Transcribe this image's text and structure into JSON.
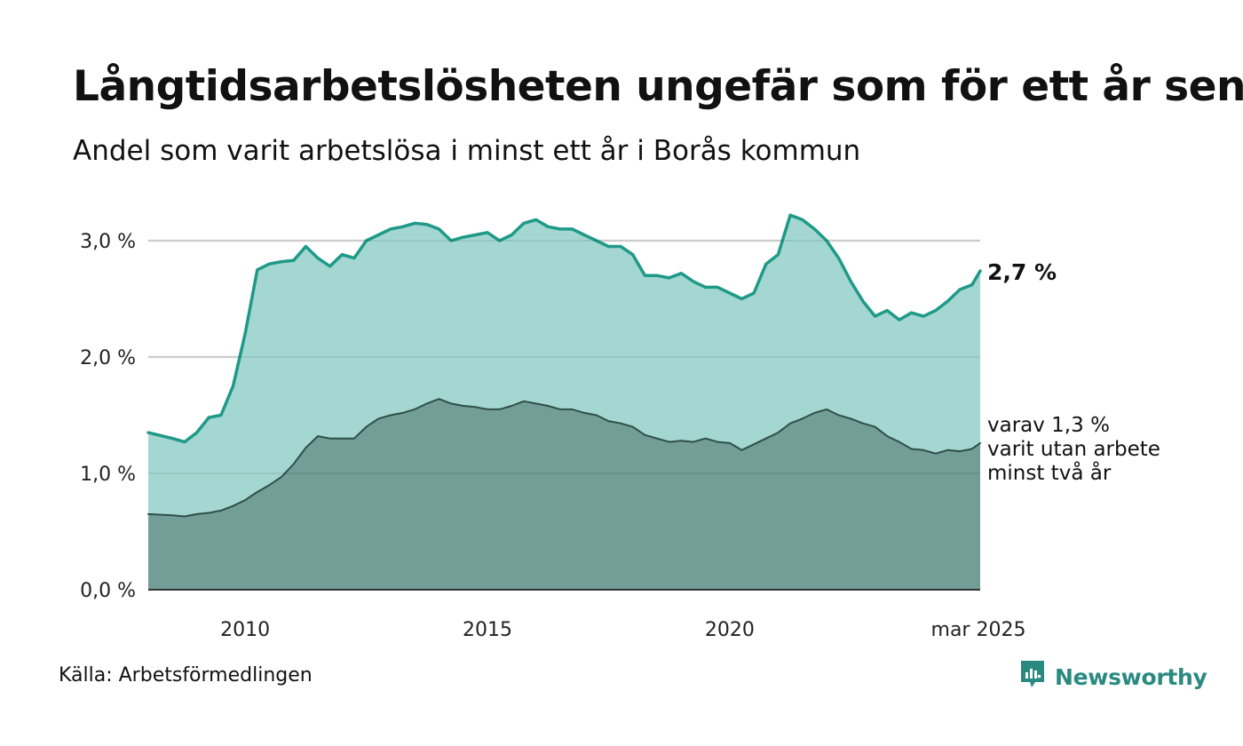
{
  "title": "Långtidsarbetslösheten ungefär som för ett år sen",
  "subtitle": "Andel som varit arbetslösa i minst ett år i Borås kommun",
  "source": "Källa: Arbetsförmedlingen",
  "brand": {
    "name": "Newsworthy",
    "icon": "newsworthy-logo-icon",
    "color": "#2a8a80"
  },
  "colors": {
    "series1_line": "#1f9a88",
    "series1_fill": "#a4d7d1",
    "series2_line": "#2f4f48",
    "series2_fill": "#729e97",
    "grid": "#dddddd",
    "axis": "#333333"
  },
  "chart_data": {
    "type": "area",
    "title": "Långtidsarbetslösheten ungefär som för ett år sen",
    "subtitle": "Andel som varit arbetslösa i minst ett år i Borås kommun",
    "xlabel": "",
    "ylabel": "",
    "xlim": [
      2008.0,
      2025.17
    ],
    "ylim": [
      0,
      3.3
    ],
    "yticks": [
      0,
      1,
      2,
      3
    ],
    "ytick_labels": [
      "0,0 %",
      "1,0 %",
      "2,0 %",
      "3,0 %"
    ],
    "xticks": [
      2010,
      2015,
      2020,
      2025.17
    ],
    "xtick_labels": [
      "2010",
      "2015",
      "2020",
      "mar 2025"
    ],
    "grid": true,
    "end_label": "2,7 %",
    "annotation": [
      "varav 1,3 %",
      "varit utan arbete",
      "minst två år"
    ],
    "series": [
      {
        "label": "minst ett år",
        "x": [
          2008.0,
          2008.5,
          2008.75,
          2009.0,
          2009.25,
          2009.5,
          2009.75,
          2010.0,
          2010.25,
          2010.5,
          2010.75,
          2011.0,
          2011.25,
          2011.5,
          2011.75,
          2012.0,
          2012.25,
          2012.5,
          2012.75,
          2013.0,
          2013.25,
          2013.5,
          2013.75,
          2014.0,
          2014.25,
          2014.5,
          2014.75,
          2015.0,
          2015.25,
          2015.5,
          2015.75,
          2016.0,
          2016.25,
          2016.5,
          2016.75,
          2017.0,
          2017.25,
          2017.5,
          2017.75,
          2018.0,
          2018.25,
          2018.5,
          2018.75,
          2019.0,
          2019.25,
          2019.5,
          2019.75,
          2020.0,
          2020.25,
          2020.5,
          2020.75,
          2021.0,
          2021.25,
          2021.5,
          2021.75,
          2022.0,
          2022.25,
          2022.5,
          2022.75,
          2023.0,
          2023.25,
          2023.5,
          2023.75,
          2024.0,
          2024.25,
          2024.5,
          2024.75,
          2025.0,
          2025.17
        ],
        "y": [
          1.35,
          1.3,
          1.27,
          1.35,
          1.48,
          1.5,
          1.75,
          2.2,
          2.75,
          2.8,
          2.82,
          2.83,
          2.95,
          2.85,
          2.78,
          2.88,
          2.85,
          3.0,
          3.05,
          3.1,
          3.12,
          3.15,
          3.14,
          3.1,
          3.0,
          3.03,
          3.05,
          3.07,
          3.0,
          3.05,
          3.15,
          3.18,
          3.12,
          3.1,
          3.1,
          3.05,
          3.0,
          2.95,
          2.95,
          2.88,
          2.7,
          2.7,
          2.68,
          2.72,
          2.65,
          2.6,
          2.6,
          2.55,
          2.5,
          2.55,
          2.8,
          2.88,
          3.22,
          3.18,
          3.1,
          3.0,
          2.85,
          2.65,
          2.48,
          2.35,
          2.4,
          2.32,
          2.38,
          2.35,
          2.4,
          2.48,
          2.58,
          2.62,
          2.74
        ]
      },
      {
        "label": "varav minst två år",
        "x": [
          2008.0,
          2008.5,
          2008.75,
          2009.0,
          2009.25,
          2009.5,
          2009.75,
          2010.0,
          2010.25,
          2010.5,
          2010.75,
          2011.0,
          2011.25,
          2011.5,
          2011.75,
          2012.0,
          2012.25,
          2012.5,
          2012.75,
          2013.0,
          2013.25,
          2013.5,
          2013.75,
          2014.0,
          2014.25,
          2014.5,
          2014.75,
          2015.0,
          2015.25,
          2015.5,
          2015.75,
          2016.0,
          2016.25,
          2016.5,
          2016.75,
          2017.0,
          2017.25,
          2017.5,
          2017.75,
          2018.0,
          2018.25,
          2018.5,
          2018.75,
          2019.0,
          2019.25,
          2019.5,
          2019.75,
          2020.0,
          2020.25,
          2020.5,
          2020.75,
          2021.0,
          2021.25,
          2021.5,
          2021.75,
          2022.0,
          2022.25,
          2022.5,
          2022.75,
          2023.0,
          2023.25,
          2023.5,
          2023.75,
          2024.0,
          2024.25,
          2024.5,
          2024.75,
          2025.0,
          2025.17
        ],
        "y": [
          0.65,
          0.64,
          0.63,
          0.65,
          0.66,
          0.68,
          0.72,
          0.77,
          0.84,
          0.9,
          0.97,
          1.08,
          1.22,
          1.32,
          1.3,
          1.3,
          1.3,
          1.4,
          1.47,
          1.5,
          1.52,
          1.55,
          1.6,
          1.64,
          1.6,
          1.58,
          1.57,
          1.55,
          1.55,
          1.58,
          1.62,
          1.6,
          1.58,
          1.55,
          1.55,
          1.52,
          1.5,
          1.45,
          1.43,
          1.4,
          1.33,
          1.3,
          1.27,
          1.28,
          1.27,
          1.3,
          1.27,
          1.26,
          1.2,
          1.25,
          1.3,
          1.35,
          1.43,
          1.47,
          1.52,
          1.55,
          1.5,
          1.47,
          1.43,
          1.4,
          1.32,
          1.27,
          1.21,
          1.2,
          1.17,
          1.2,
          1.19,
          1.21,
          1.26
        ]
      }
    ]
  }
}
